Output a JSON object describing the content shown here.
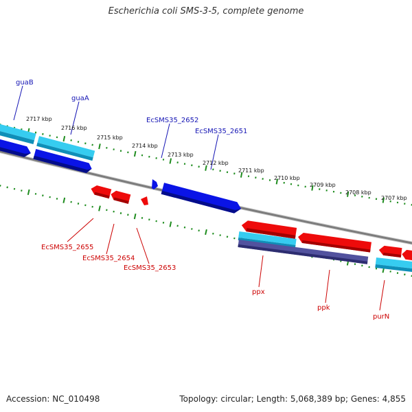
{
  "header": {
    "title": "Escherichia coli SMS-3-5, complete genome"
  },
  "footer": {
    "accession": "Accession: NC_010498",
    "summary": "Topology: circular; Length: 5,068,389 bp; Genes: 4,855"
  },
  "colors": {
    "backbone": "#8a8a8a",
    "tick": "#1e8c1e",
    "gene_dark_blue": "#0a14e6",
    "gene_light_blue": "#1ebde8",
    "gene_red": "#ee0b0b",
    "gene_purple": "#3a3a96",
    "label_blue": "#1414b4",
    "label_red": "#cc0000"
  },
  "ruler": {
    "unit": "kbp",
    "ticks": [
      {
        "kbp": 2717,
        "label": "2717 kbp"
      },
      {
        "kbp": 2716,
        "label": "2716 kbp"
      },
      {
        "kbp": 2715,
        "label": "2715 kbp"
      },
      {
        "kbp": 2714,
        "label": "2714 kbp"
      },
      {
        "kbp": 2713,
        "label": "2713 kbp"
      },
      {
        "kbp": 2712,
        "label": "2712 kbp"
      },
      {
        "kbp": 2711,
        "label": "2711 kbp"
      },
      {
        "kbp": 2710,
        "label": "2710 kbp"
      },
      {
        "kbp": 2709,
        "label": "2709 kbp"
      },
      {
        "kbp": 2708,
        "label": "2708 kbp"
      },
      {
        "kbp": 2707,
        "label": "2707 kbp"
      }
    ]
  },
  "genes": {
    "forward": [
      {
        "label": "guaB",
        "color": "gene_light_blue"
      },
      {
        "label": "guaA",
        "color": "gene_light_blue"
      },
      {
        "label": "EcSMS35_2652",
        "color": "gene_dark_blue"
      },
      {
        "label": "EcSMS35_2651",
        "color": "gene_dark_blue"
      }
    ],
    "reverse": [
      {
        "label": "EcSMS35_2655",
        "color": "gene_red"
      },
      {
        "label": "EcSMS35_2654",
        "color": "gene_red"
      },
      {
        "label": "EcSMS35_2653",
        "color": "gene_red"
      },
      {
        "label": "ppx",
        "color": "gene_red"
      },
      {
        "label": "ppk",
        "color": "gene_red"
      },
      {
        "label": "purN",
        "color": "gene_red"
      }
    ]
  }
}
